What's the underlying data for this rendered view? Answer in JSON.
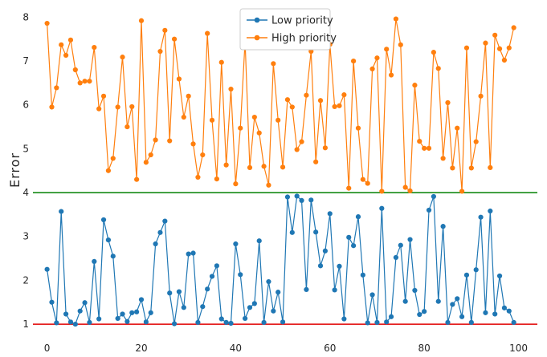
{
  "chart_data": {
    "type": "line",
    "title": "",
    "xlabel": "",
    "ylabel": "Error",
    "xlim": [
      -3,
      104
    ],
    "ylim": [
      0.8,
      8.3
    ],
    "xticks": [
      "0",
      "20",
      "40",
      "60",
      "80",
      "100"
    ],
    "yticks": [
      "1",
      "2",
      "3",
      "4",
      "5",
      "6",
      "7",
      "8"
    ],
    "grid": false,
    "legend": "top-center",
    "x": [
      0,
      1,
      2,
      3,
      4,
      5,
      6,
      7,
      8,
      9,
      10,
      11,
      12,
      13,
      14,
      15,
      16,
      17,
      18,
      19,
      20,
      21,
      22,
      23,
      24,
      25,
      26,
      27,
      28,
      29,
      30,
      31,
      32,
      33,
      34,
      35,
      36,
      37,
      38,
      39,
      40,
      41,
      42,
      43,
      44,
      45,
      46,
      47,
      48,
      49,
      50,
      51,
      52,
      53,
      54,
      55,
      56,
      57,
      58,
      59,
      60,
      61,
      62,
      63,
      64,
      65,
      66,
      67,
      68,
      69,
      70,
      71,
      72,
      73,
      74,
      75,
      76,
      77,
      78,
      79,
      80,
      81,
      82,
      83,
      84,
      85,
      86,
      87,
      88,
      89,
      90,
      91,
      92,
      93,
      94,
      95,
      96,
      97,
      98,
      99
    ],
    "series": [
      {
        "name": "Low priority",
        "color": "#1f77b4",
        "values": [
          2.25,
          1.5,
          1.03,
          3.57,
          1.23,
          1.05,
          1.0,
          1.3,
          1.49,
          1.04,
          2.43,
          1.12,
          3.38,
          2.92,
          2.55,
          1.13,
          1.23,
          1.06,
          1.26,
          1.28,
          1.56,
          1.05,
          1.26,
          2.83,
          3.09,
          3.35,
          1.71,
          1.01,
          1.74,
          1.38,
          2.6,
          2.62,
          1.04,
          1.4,
          1.8,
          2.09,
          2.33,
          1.12,
          1.04,
          1.02,
          2.83,
          2.13,
          1.13,
          1.38,
          1.47,
          2.9,
          1.04,
          1.97,
          1.3,
          1.73,
          1.05,
          3.9,
          3.09,
          3.92,
          3.82,
          1.79,
          3.83,
          3.1,
          2.33,
          2.67,
          3.52,
          1.78,
          2.32,
          1.12,
          2.98,
          2.79,
          3.45,
          2.12,
          1.03,
          1.67,
          1.04,
          3.64,
          1.05,
          1.17,
          2.52,
          2.8,
          1.52,
          2.93,
          1.77,
          1.22,
          1.29,
          3.6,
          3.91,
          1.52,
          3.23,
          1.04,
          1.45,
          1.58,
          1.17,
          2.12,
          1.04,
          2.24,
          3.44,
          1.26,
          3.58,
          1.23,
          2.1,
          1.37,
          1.3,
          1.04
        ]
      },
      {
        "name": "High priority",
        "color": "#ff7f0e",
        "values": [
          7.86,
          5.95,
          6.39,
          7.37,
          7.13,
          7.48,
          6.8,
          6.5,
          6.54,
          6.54,
          7.31,
          5.91,
          6.2,
          4.5,
          4.78,
          5.95,
          7.09,
          5.5,
          5.96,
          4.3,
          7.92,
          4.69,
          4.86,
          5.2,
          7.22,
          7.7,
          5.18,
          7.5,
          6.59,
          5.72,
          6.2,
          5.11,
          4.35,
          4.86,
          7.63,
          5.65,
          4.31,
          6.97,
          4.63,
          6.36,
          4.2,
          5.47,
          7.45,
          4.57,
          5.72,
          5.36,
          4.6,
          4.17,
          6.94,
          5.65,
          4.58,
          6.12,
          5.95,
          4.98,
          5.16,
          6.22,
          7.22,
          4.7,
          6.1,
          5.02,
          7.38,
          5.96,
          5.98,
          6.23,
          4.1,
          7.0,
          5.47,
          4.3,
          4.21,
          6.82,
          7.07,
          4.03,
          7.27,
          6.68,
          7.96,
          7.37,
          4.12,
          4.04,
          6.45,
          5.17,
          5.01,
          5.01,
          7.2,
          6.83,
          4.78,
          6.05,
          4.56,
          5.47,
          4.03,
          7.3,
          4.56,
          5.16,
          6.2,
          7.41,
          4.57,
          7.59,
          7.28,
          7.02,
          7.3,
          7.76
        ]
      }
    ],
    "reference_lines": [
      {
        "y": 4,
        "color": "#008000"
      },
      {
        "y": 1,
        "color": "#e00000"
      }
    ]
  }
}
